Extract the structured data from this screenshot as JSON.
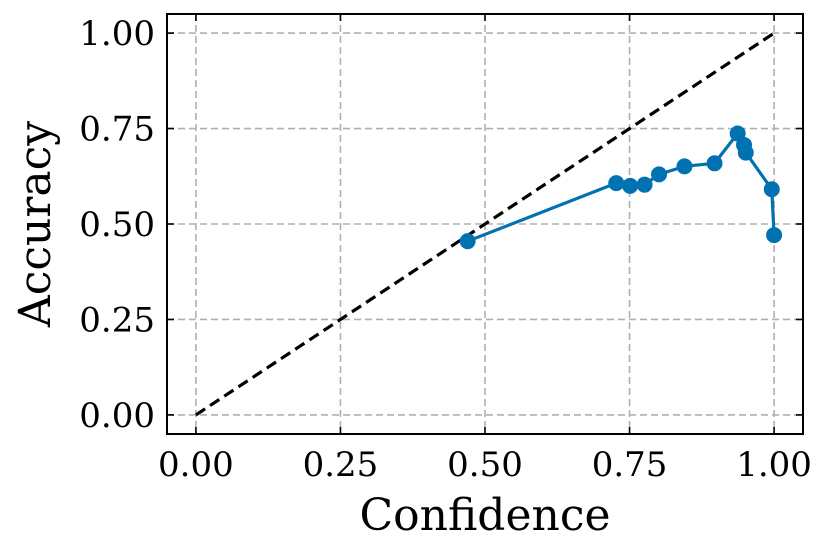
{
  "chart_data": {
    "type": "line",
    "xlabel": "Confidence",
    "ylabel": "Accuracy",
    "xlim": [
      -0.05,
      1.05
    ],
    "ylim": [
      -0.05,
      1.05
    ],
    "xticks": [
      "0.00",
      "0.25",
      "0.50",
      "0.75",
      "1.00"
    ],
    "yticks": [
      "0.00",
      "0.25",
      "0.50",
      "0.75",
      "1.00"
    ],
    "grid": true,
    "reference_line": {
      "style": "dashed",
      "color": "#000000",
      "x": [
        0,
        1
      ],
      "y": [
        0,
        1
      ]
    },
    "series": [
      {
        "color": "#0072b2",
        "x": [
          0.47,
          0.727,
          0.751,
          0.776,
          0.801,
          0.845,
          0.897,
          0.937,
          0.948,
          0.951,
          0.996,
          1.0
        ],
        "y": [
          0.455,
          0.607,
          0.6,
          0.603,
          0.63,
          0.651,
          0.659,
          0.737,
          0.707,
          0.687,
          0.591,
          0.471
        ]
      }
    ]
  }
}
